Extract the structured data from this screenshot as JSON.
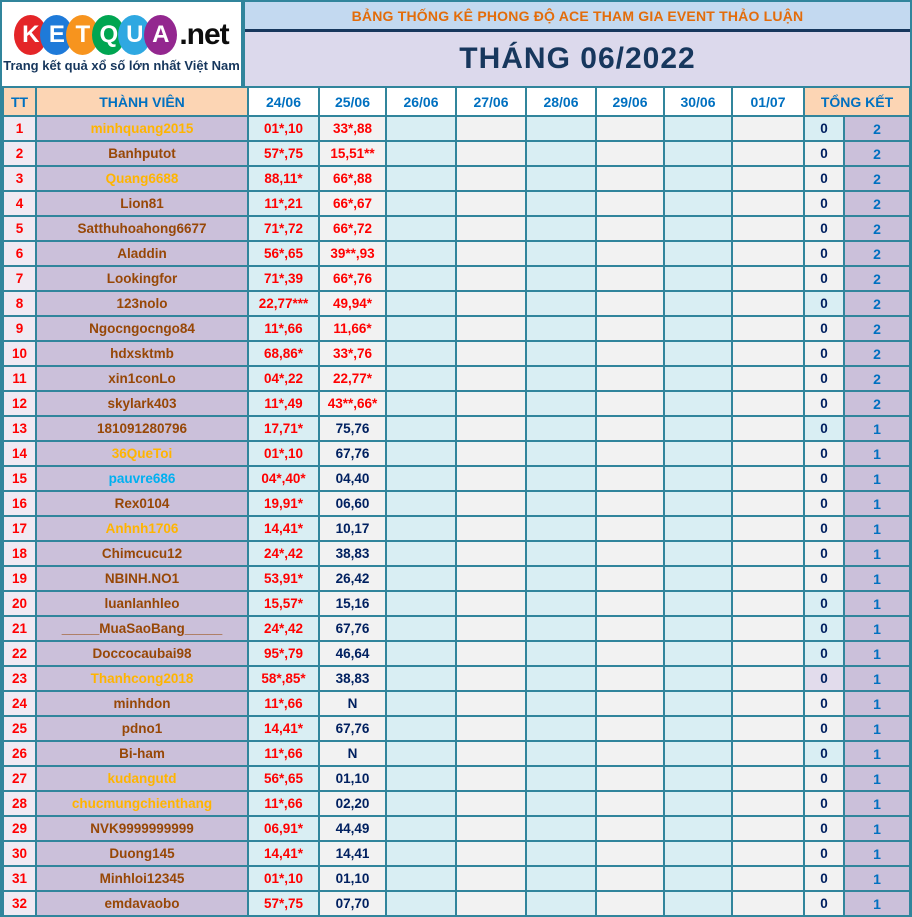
{
  "logo": {
    "letters": [
      {
        "ch": "K",
        "bg": "#E42528"
      },
      {
        "ch": "E",
        "bg": "#1E7AD9"
      },
      {
        "ch": "T",
        "bg": "#F7941E"
      },
      {
        "ch": "Q",
        "bg": "#00A551"
      },
      {
        "ch": "U",
        "bg": "#2FA8E1"
      },
      {
        "ch": "A",
        "bg": "#93278F"
      }
    ],
    "suffix": ".net",
    "tagline": "Trang kết quả xổ số lớn nhất Việt Nam"
  },
  "banner": {
    "title": "BẢNG THỐNG KÊ PHONG ĐỘ ACE THAM GIA EVENT THẢO LUẬN",
    "month": "THÁNG 06/2022"
  },
  "chart_data": {
    "type": "table",
    "title": "BẢNG THỐNG KÊ PHONG ĐỘ ACE THAM GIA EVENT THẢO LUẬN",
    "subtitle": "THÁNG 06/2022",
    "columns": {
      "tt": "TT",
      "member": "THÀNH VIÊN",
      "dates": [
        "24/06",
        "25/06",
        "26/06",
        "27/06",
        "28/06",
        "29/06",
        "30/06",
        "01/07"
      ],
      "total": "TỔNG KẾT"
    },
    "rows": [
      {
        "tt": "1",
        "member": "minhquang2015",
        "name_color": "orange",
        "v24": "01*,10",
        "v25": "33*,88",
        "v25_color": "red",
        "zero": "0",
        "total": "2",
        "zero_hl": "cyan"
      },
      {
        "tt": "2",
        "member": "Banhputot",
        "name_color": "brown",
        "v24": "57*,75",
        "v25": "15,51**",
        "v25_color": "red",
        "zero": "0",
        "total": "2",
        "zero_hl": ""
      },
      {
        "tt": "3",
        "member": "Quang6688",
        "name_color": "orange",
        "v24": "88,11*",
        "v25": "66*,88",
        "v25_color": "red",
        "zero": "0",
        "total": "2",
        "zero_hl": ""
      },
      {
        "tt": "4",
        "member": "Lion81",
        "name_color": "brown",
        "v24": "11*,21",
        "v25": "66*,67",
        "v25_color": "red",
        "zero": "0",
        "total": "2",
        "zero_hl": ""
      },
      {
        "tt": "5",
        "member": "Satthuhoahong6677",
        "name_color": "brown",
        "v24": "71*,72",
        "v25": "66*,72",
        "v25_color": "red",
        "zero": "0",
        "total": "2",
        "zero_hl": ""
      },
      {
        "tt": "6",
        "member": "Aladdin",
        "name_color": "brown",
        "v24": "56*,65",
        "v25": "39**,93",
        "v25_color": "red",
        "zero": "0",
        "total": "2",
        "zero_hl": ""
      },
      {
        "tt": "7",
        "member": "Lookingfor",
        "name_color": "brown",
        "v24": "71*,39",
        "v25": "66*,76",
        "v25_color": "red",
        "zero": "0",
        "total": "2",
        "zero_hl": ""
      },
      {
        "tt": "8",
        "member": "123nolo",
        "name_color": "brown",
        "v24": "22,77***",
        "v25": "49,94*",
        "v25_color": "red",
        "zero": "0",
        "total": "2",
        "zero_hl": "cyan"
      },
      {
        "tt": "9",
        "member": "Ngocngocngo84",
        "name_color": "brown",
        "v24": "11*,66",
        "v25": "11,66*",
        "v25_color": "red",
        "zero": "0",
        "total": "2",
        "zero_hl": ""
      },
      {
        "tt": "10",
        "member": "hdxsktmb",
        "name_color": "brown",
        "v24": "68,86*",
        "v25": "33*,76",
        "v25_color": "red",
        "zero": "0",
        "total": "2",
        "zero_hl": ""
      },
      {
        "tt": "11",
        "member": "xin1conLo",
        "name_color": "brown",
        "v24": "04*,22",
        "v25": "22,77*",
        "v25_color": "red",
        "zero": "0",
        "total": "2",
        "zero_hl": ""
      },
      {
        "tt": "12",
        "member": "skylark403",
        "name_color": "brown",
        "v24": "11*,49",
        "v25": "43**,66*",
        "v25_color": "red",
        "zero": "0",
        "total": "2",
        "zero_hl": ""
      },
      {
        "tt": "13",
        "member": "181091280796",
        "name_color": "brown",
        "v24": "17,71*",
        "v25": "75,76",
        "v25_color": "navy",
        "zero": "0",
        "total": "1",
        "zero_hl": "cyan"
      },
      {
        "tt": "14",
        "member": "36QueToi",
        "name_color": "orange",
        "v24": "01*,10",
        "v25": "67,76",
        "v25_color": "navy",
        "zero": "0",
        "total": "1",
        "zero_hl": ""
      },
      {
        "tt": "15",
        "member": "pauvre686",
        "name_color": "lightblue",
        "v24": "04*,40*",
        "v25": "04,40",
        "v25_color": "navy",
        "zero": "0",
        "total": "1",
        "zero_hl": ""
      },
      {
        "tt": "16",
        "member": "Rex0104",
        "name_color": "brown",
        "v24": "19,91*",
        "v25": "06,60",
        "v25_color": "navy",
        "zero": "0",
        "total": "1",
        "zero_hl": ""
      },
      {
        "tt": "17",
        "member": "Anhnh1706",
        "name_color": "orange",
        "v24": "14,41*",
        "v25": "10,17",
        "v25_color": "navy",
        "zero": "0",
        "total": "1",
        "zero_hl": ""
      },
      {
        "tt": "18",
        "member": "Chimcucu12",
        "name_color": "brown",
        "v24": "24*,42",
        "v25": "38,83",
        "v25_color": "navy",
        "zero": "0",
        "total": "1",
        "zero_hl": ""
      },
      {
        "tt": "19",
        "member": "NBINH.NO1",
        "name_color": "brown",
        "v24": "53,91*",
        "v25": "26,42",
        "v25_color": "navy",
        "zero": "0",
        "total": "1",
        "zero_hl": ""
      },
      {
        "tt": "20",
        "member": "luanlanhleo",
        "name_color": "brown",
        "v24": "15,57*",
        "v25": "15,16",
        "v25_color": "navy",
        "zero": "0",
        "total": "1",
        "zero_hl": "cyan"
      },
      {
        "tt": "21",
        "member": "_____MuaSaoBang_____",
        "name_color": "brown",
        "v24": "24*,42",
        "v25": "67,76",
        "v25_color": "navy",
        "zero": "0",
        "total": "1",
        "zero_hl": "cyan"
      },
      {
        "tt": "22",
        "member": "Doccocaubai98",
        "name_color": "brown",
        "v24": "95*,79",
        "v25": "46,64",
        "v25_color": "navy",
        "zero": "0",
        "total": "1",
        "zero_hl": "cyan"
      },
      {
        "tt": "23",
        "member": "Thanhcong2018",
        "name_color": "orange",
        "v24": "58*,85*",
        "v25": "38,83",
        "v25_color": "navy",
        "zero": "0",
        "total": "1",
        "zero_hl": "purple"
      },
      {
        "tt": "24",
        "member": "minhdon",
        "name_color": "brown",
        "v24": "11*,66",
        "v25": "N",
        "v25_color": "navy",
        "zero": "0",
        "total": "1",
        "zero_hl": ""
      },
      {
        "tt": "25",
        "member": "pdno1",
        "name_color": "brown",
        "v24": "14,41*",
        "v25": "67,76",
        "v25_color": "navy",
        "zero": "0",
        "total": "1",
        "zero_hl": ""
      },
      {
        "tt": "26",
        "member": "Bi-ham",
        "name_color": "brown",
        "v24": "11*,66",
        "v25": "N",
        "v25_color": "navy",
        "zero": "0",
        "total": "1",
        "zero_hl": "cyan"
      },
      {
        "tt": "27",
        "member": "kudangutd",
        "name_color": "orange",
        "v24": "56*,65",
        "v25": "01,10",
        "v25_color": "navy",
        "zero": "0",
        "total": "1",
        "zero_hl": ""
      },
      {
        "tt": "28",
        "member": "chucmungchienthang",
        "name_color": "orange",
        "v24": "11*,66",
        "v25": "02,20",
        "v25_color": "navy",
        "zero": "0",
        "total": "1",
        "zero_hl": ""
      },
      {
        "tt": "29",
        "member": "NVK9999999999",
        "name_color": "brown",
        "v24": "06,91*",
        "v25": "44,49",
        "v25_color": "navy",
        "zero": "0",
        "total": "1",
        "zero_hl": ""
      },
      {
        "tt": "30",
        "member": "Duong145",
        "name_color": "brown",
        "v24": "14,41*",
        "v25": "14,41",
        "v25_color": "navy",
        "zero": "0",
        "total": "1",
        "zero_hl": ""
      },
      {
        "tt": "31",
        "member": "Minhloi12345",
        "name_color": "brown",
        "v24": "01*,10",
        "v25": "01,10",
        "v25_color": "navy",
        "zero": "0",
        "total": "1",
        "zero_hl": ""
      },
      {
        "tt": "32",
        "member": "emdavaobo",
        "name_color": "brown",
        "v24": "57*,75",
        "v25": "07,70",
        "v25_color": "navy",
        "zero": "0",
        "total": "1",
        "zero_hl": ""
      }
    ],
    "layout": {
      "grid": "on",
      "date_column_backgrounds": [
        "#D9EEF3",
        "#F2F2F2",
        "#D9EEF3",
        "#F2F2F2",
        "#D9EEF3",
        "#F2F2F2",
        "#D9EEF3",
        "#F2F2F2"
      ],
      "empty_date_columns": [
        "26/06",
        "27/06",
        "28/06",
        "29/06",
        "30/06",
        "01/07"
      ]
    }
  },
  "colors": {
    "frame_teal": "#31859C",
    "header_peach": "#FCD5B4",
    "banner_blue": "#C3D9F0",
    "banner_text_orange": "#E36C0A",
    "month_lavender": "#DCD9EC",
    "month_text_navy": "#17375D",
    "col_cyan": "#D9EEF3",
    "col_gray": "#F2F2F2",
    "member_purple": "#CBC0DA",
    "tt_pink": "#EFEAF3",
    "value_red": "#FF0000",
    "value_navy": "#002060",
    "total_blue": "#0070C0",
    "name_brown": "#974706",
    "name_orange": "#FFB400",
    "name_lightblue": "#00B0F0"
  }
}
